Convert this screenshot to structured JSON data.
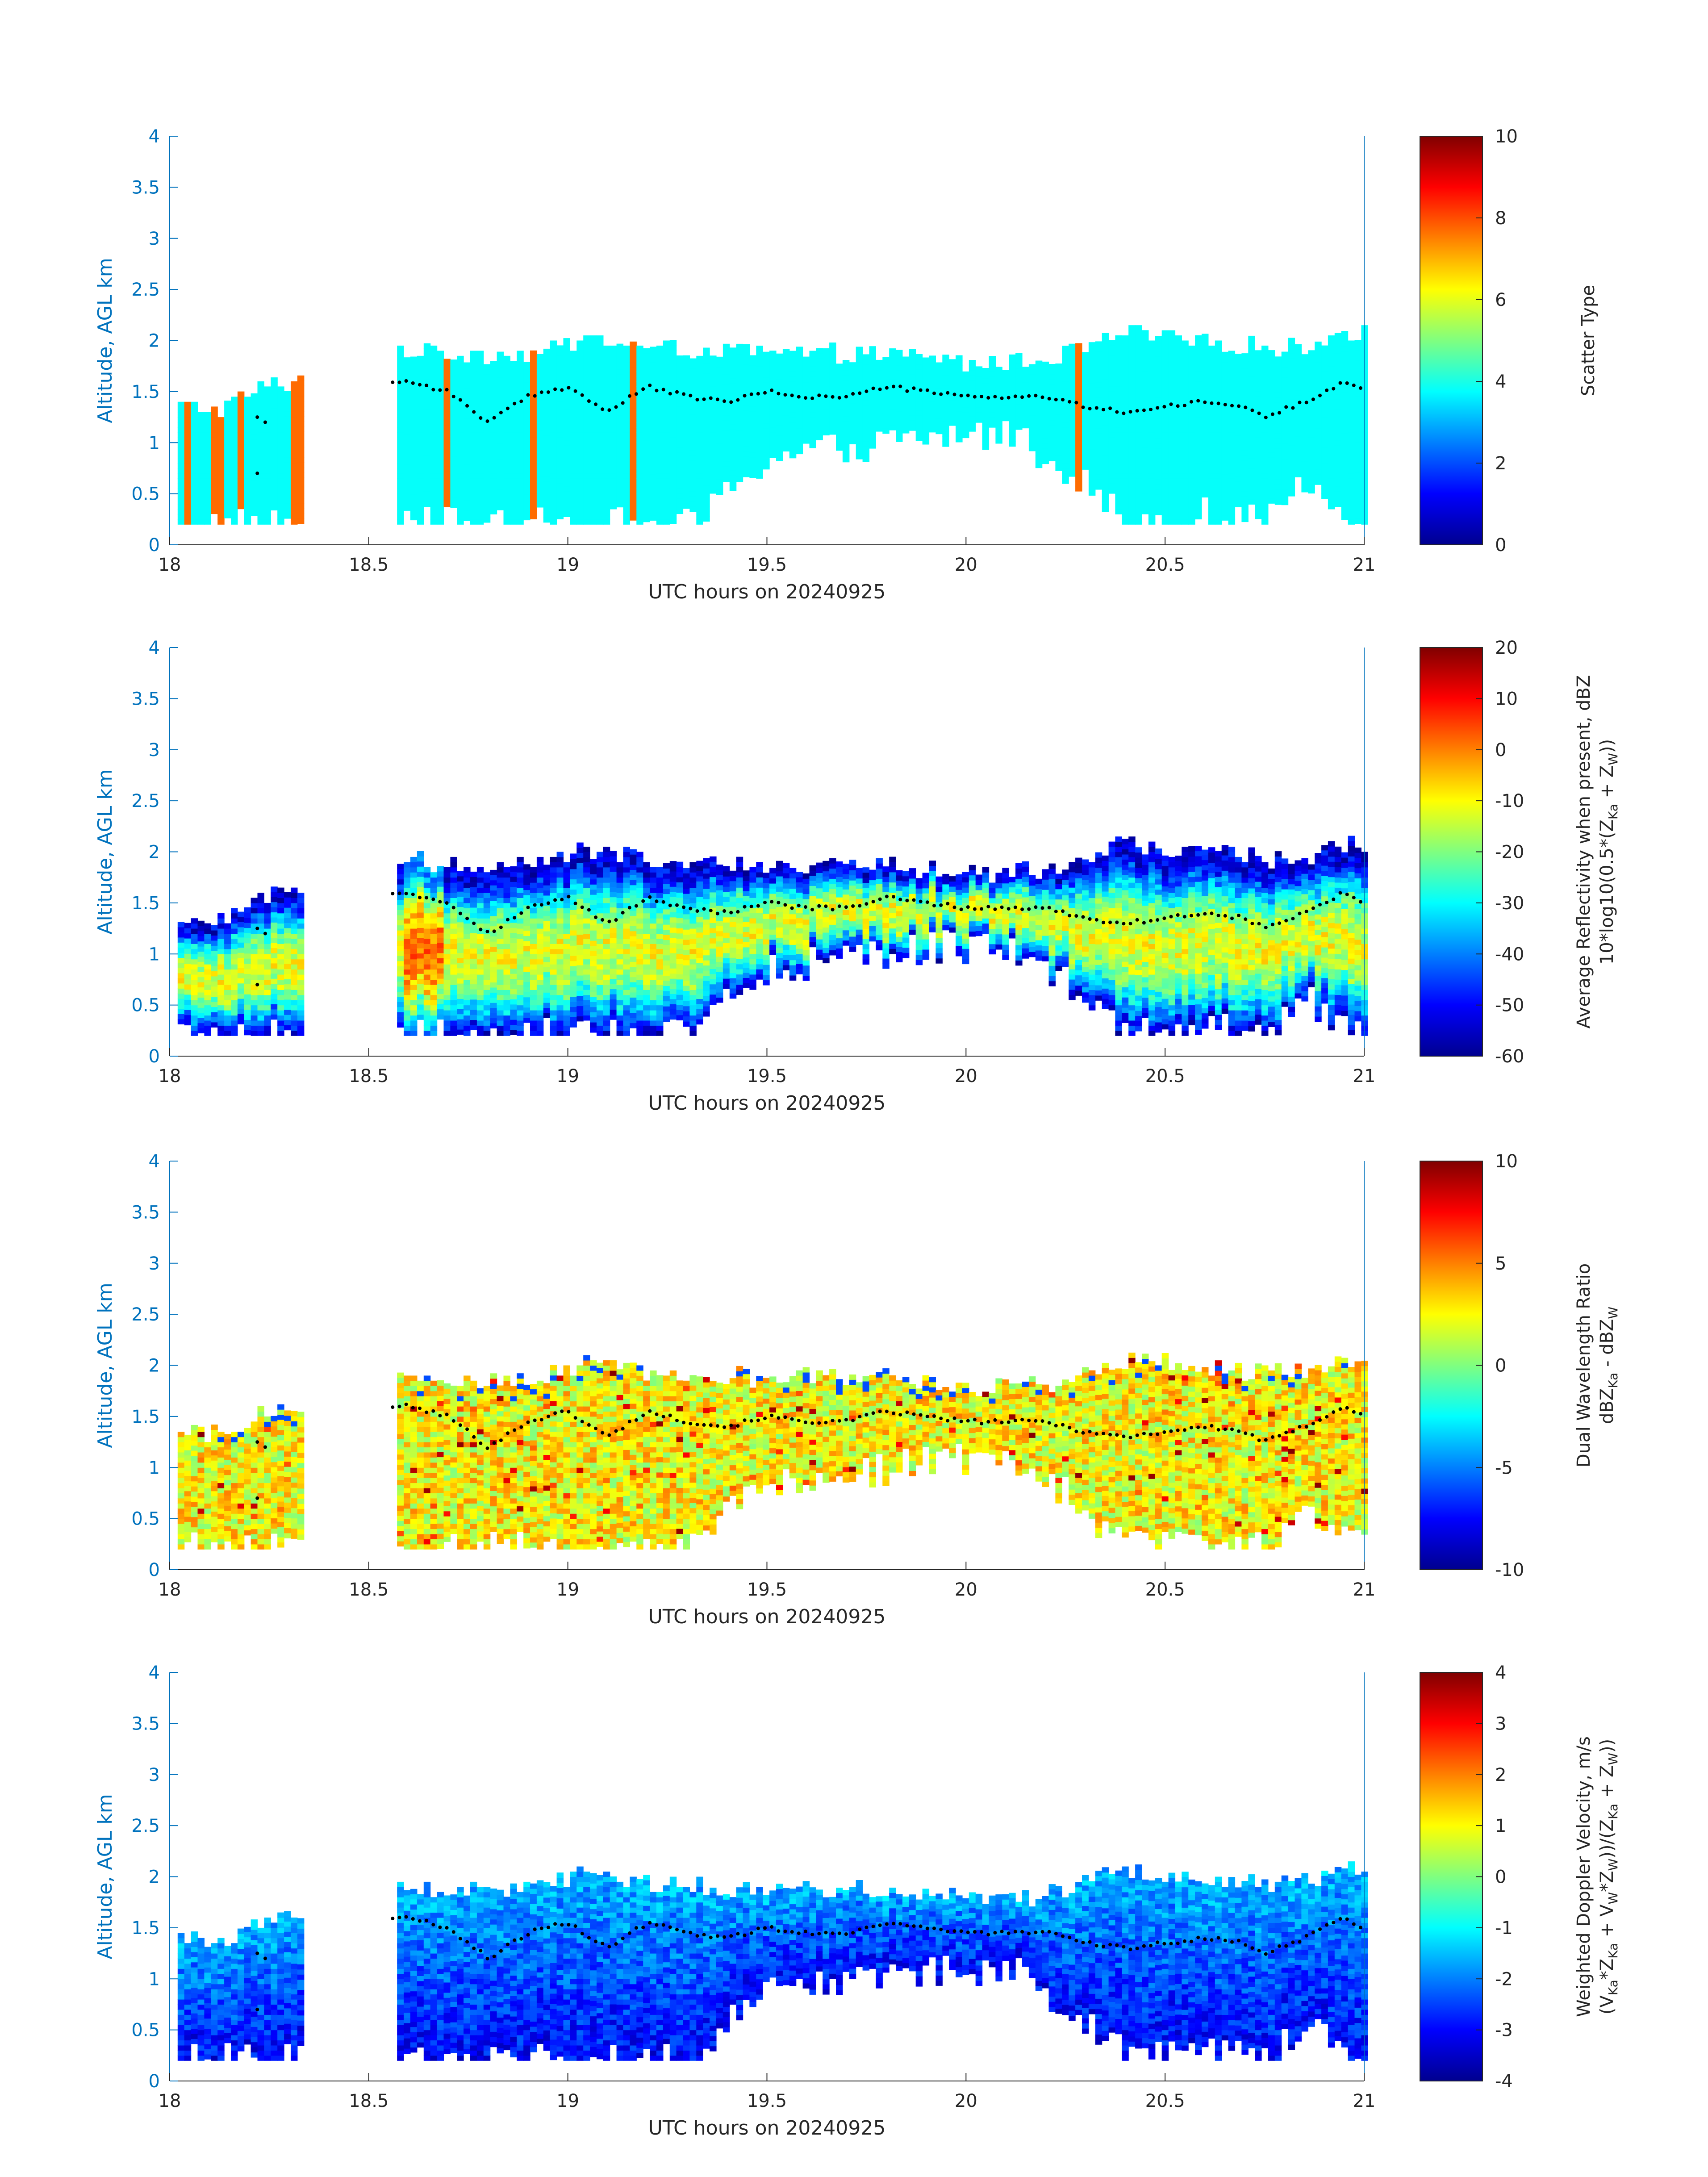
{
  "figure": {
    "date_label": "UTC hours on 20240925"
  },
  "chart_data": [
    {
      "type": "heatmap",
      "title": "",
      "xlabel": "UTC hours on 20240925",
      "ylabel": "Altitude, AGL km",
      "xlim": [
        18,
        21
      ],
      "ylim": [
        0,
        4
      ],
      "xticks": [
        "18",
        "18.5",
        "19",
        "19.5",
        "20",
        "20.5",
        "21"
      ],
      "yticks": [
        "0",
        "0.5",
        "1",
        "1.5",
        "2",
        "2.5",
        "3",
        "3.5",
        "4"
      ],
      "colorbar": {
        "label_lines": [
          "Scatter Type"
        ],
        "range": [
          0,
          10
        ],
        "ticks": [
          "0",
          "2",
          "4",
          "6",
          "8",
          "10"
        ]
      },
      "field": "scatter_type",
      "dominant_value": 3.8,
      "secondary_value": 7.7,
      "secondary_times_hours": [
        18.04,
        18.1,
        18.12,
        18.17,
        18.31,
        18.32,
        18.56,
        18.69,
        18.9,
        19.16,
        20.27
      ],
      "cloud_top_profile_km": [
        [
          18.02,
          1.35
        ],
        [
          18.12,
          1.3
        ],
        [
          18.22,
          1.5
        ],
        [
          18.32,
          1.6
        ],
        [
          18.56,
          1.9
        ],
        [
          18.7,
          1.85
        ],
        [
          18.9,
          1.85
        ],
        [
          19.05,
          2.0
        ],
        [
          19.2,
          1.9
        ],
        [
          19.5,
          1.85
        ],
        [
          19.8,
          1.85
        ],
        [
          20.0,
          1.75
        ],
        [
          20.2,
          1.8
        ],
        [
          20.4,
          2.05
        ],
        [
          20.6,
          1.95
        ],
        [
          20.8,
          1.9
        ],
        [
          20.95,
          2.05
        ]
      ],
      "cloud_base_profile_km": [
        [
          18.02,
          0.2
        ],
        [
          18.32,
          0.2
        ],
        [
          18.56,
          0.2
        ],
        [
          19.33,
          0.2
        ],
        [
          19.4,
          0.6
        ],
        [
          19.5,
          0.85
        ],
        [
          19.7,
          0.95
        ],
        [
          19.9,
          1.05
        ],
        [
          20.1,
          1.1
        ],
        [
          20.25,
          0.75
        ],
        [
          20.4,
          0.2
        ],
        [
          20.6,
          0.3
        ],
        [
          20.75,
          0.2
        ],
        [
          20.85,
          0.6
        ],
        [
          20.95,
          0.25
        ]
      ],
      "cloud_base_dots_km": [
        [
          18.6,
          1.6
        ],
        [
          18.7,
          1.5
        ],
        [
          18.8,
          1.2
        ],
        [
          18.9,
          1.45
        ],
        [
          19.0,
          1.55
        ],
        [
          19.1,
          1.3
        ],
        [
          19.2,
          1.55
        ],
        [
          19.3,
          1.45
        ],
        [
          19.4,
          1.4
        ],
        [
          19.5,
          1.5
        ],
        [
          19.6,
          1.45
        ],
        [
          19.7,
          1.45
        ],
        [
          19.8,
          1.55
        ],
        [
          19.9,
          1.5
        ],
        [
          20.0,
          1.45
        ],
        [
          20.1,
          1.45
        ],
        [
          20.2,
          1.45
        ],
        [
          20.3,
          1.35
        ],
        [
          20.4,
          1.3
        ],
        [
          20.5,
          1.35
        ],
        [
          20.6,
          1.4
        ],
        [
          20.7,
          1.35
        ],
        [
          20.75,
          1.25
        ],
        [
          20.85,
          1.4
        ],
        [
          20.95,
          1.6
        ],
        [
          21.0,
          1.5
        ]
      ]
    },
    {
      "type": "heatmap",
      "title": "",
      "xlabel": "UTC hours on 20240925",
      "ylabel": "Altitude, AGL km",
      "xlim": [
        18,
        21
      ],
      "ylim": [
        0,
        4
      ],
      "xticks": [
        "18",
        "18.5",
        "19",
        "19.5",
        "20",
        "20.5",
        "21"
      ],
      "yticks": [
        "0",
        "0.5",
        "1",
        "1.5",
        "2",
        "2.5",
        "3",
        "3.5",
        "4"
      ],
      "colorbar": {
        "label_lines": [
          "Average Reflectivity when present, dBZ",
          "10*log10(0.5*(Z",
          "Ka",
          " + Z",
          "W",
          "))"
        ],
        "range": [
          -60,
          20
        ],
        "ticks": [
          "-60",
          "-50",
          "-40",
          "-30",
          "-20",
          "-10",
          "0",
          "10",
          "20"
        ]
      },
      "field": "reflectivity_dbz",
      "typical_range": [
        -55,
        0
      ]
    },
    {
      "type": "heatmap",
      "title": "",
      "xlabel": "UTC hours on 20240925",
      "ylabel": "Altitude, AGL km",
      "xlim": [
        18,
        21
      ],
      "ylim": [
        0,
        4
      ],
      "xticks": [
        "18",
        "18.5",
        "19",
        "19.5",
        "20",
        "20.5",
        "21"
      ],
      "yticks": [
        "0",
        "0.5",
        "1",
        "1.5",
        "2",
        "2.5",
        "3",
        "3.5",
        "4"
      ],
      "colorbar": {
        "label_lines": [
          "Dual Wavelength Ratio",
          "dBZ",
          "Ka",
          " - dBZ",
          "W"
        ],
        "range": [
          -10,
          10
        ],
        "ticks": [
          "-10",
          "-5",
          "0",
          "5",
          "10"
        ]
      },
      "field": "dual_wavelength_ratio",
      "typical_range": [
        0,
        6
      ]
    },
    {
      "type": "heatmap",
      "title": "",
      "xlabel": "UTC hours on 20240925",
      "ylabel": "Altitude, AGL km",
      "xlim": [
        18,
        21
      ],
      "ylim": [
        0,
        4
      ],
      "xticks": [
        "18",
        "18.5",
        "19",
        "19.5",
        "20",
        "20.5",
        "21"
      ],
      "yticks": [
        "0",
        "0.5",
        "1",
        "1.5",
        "2",
        "2.5",
        "3",
        "3.5",
        "4"
      ],
      "colorbar": {
        "label_lines": [
          "Weighted Doppler Velocity, m/s",
          "(V",
          "Ka",
          "*Z",
          "Ka",
          " + V",
          "W",
          "*Z",
          "W",
          "))/(Z",
          "Ka",
          " + Z",
          "W",
          "))"
        ],
        "range": [
          -4,
          4
        ],
        "ticks": [
          "-4",
          "-3",
          "-2",
          "-1",
          "0",
          "1",
          "2",
          "3",
          "4"
        ]
      },
      "field": "doppler_velocity",
      "typical_range": [
        -3,
        0
      ]
    }
  ]
}
